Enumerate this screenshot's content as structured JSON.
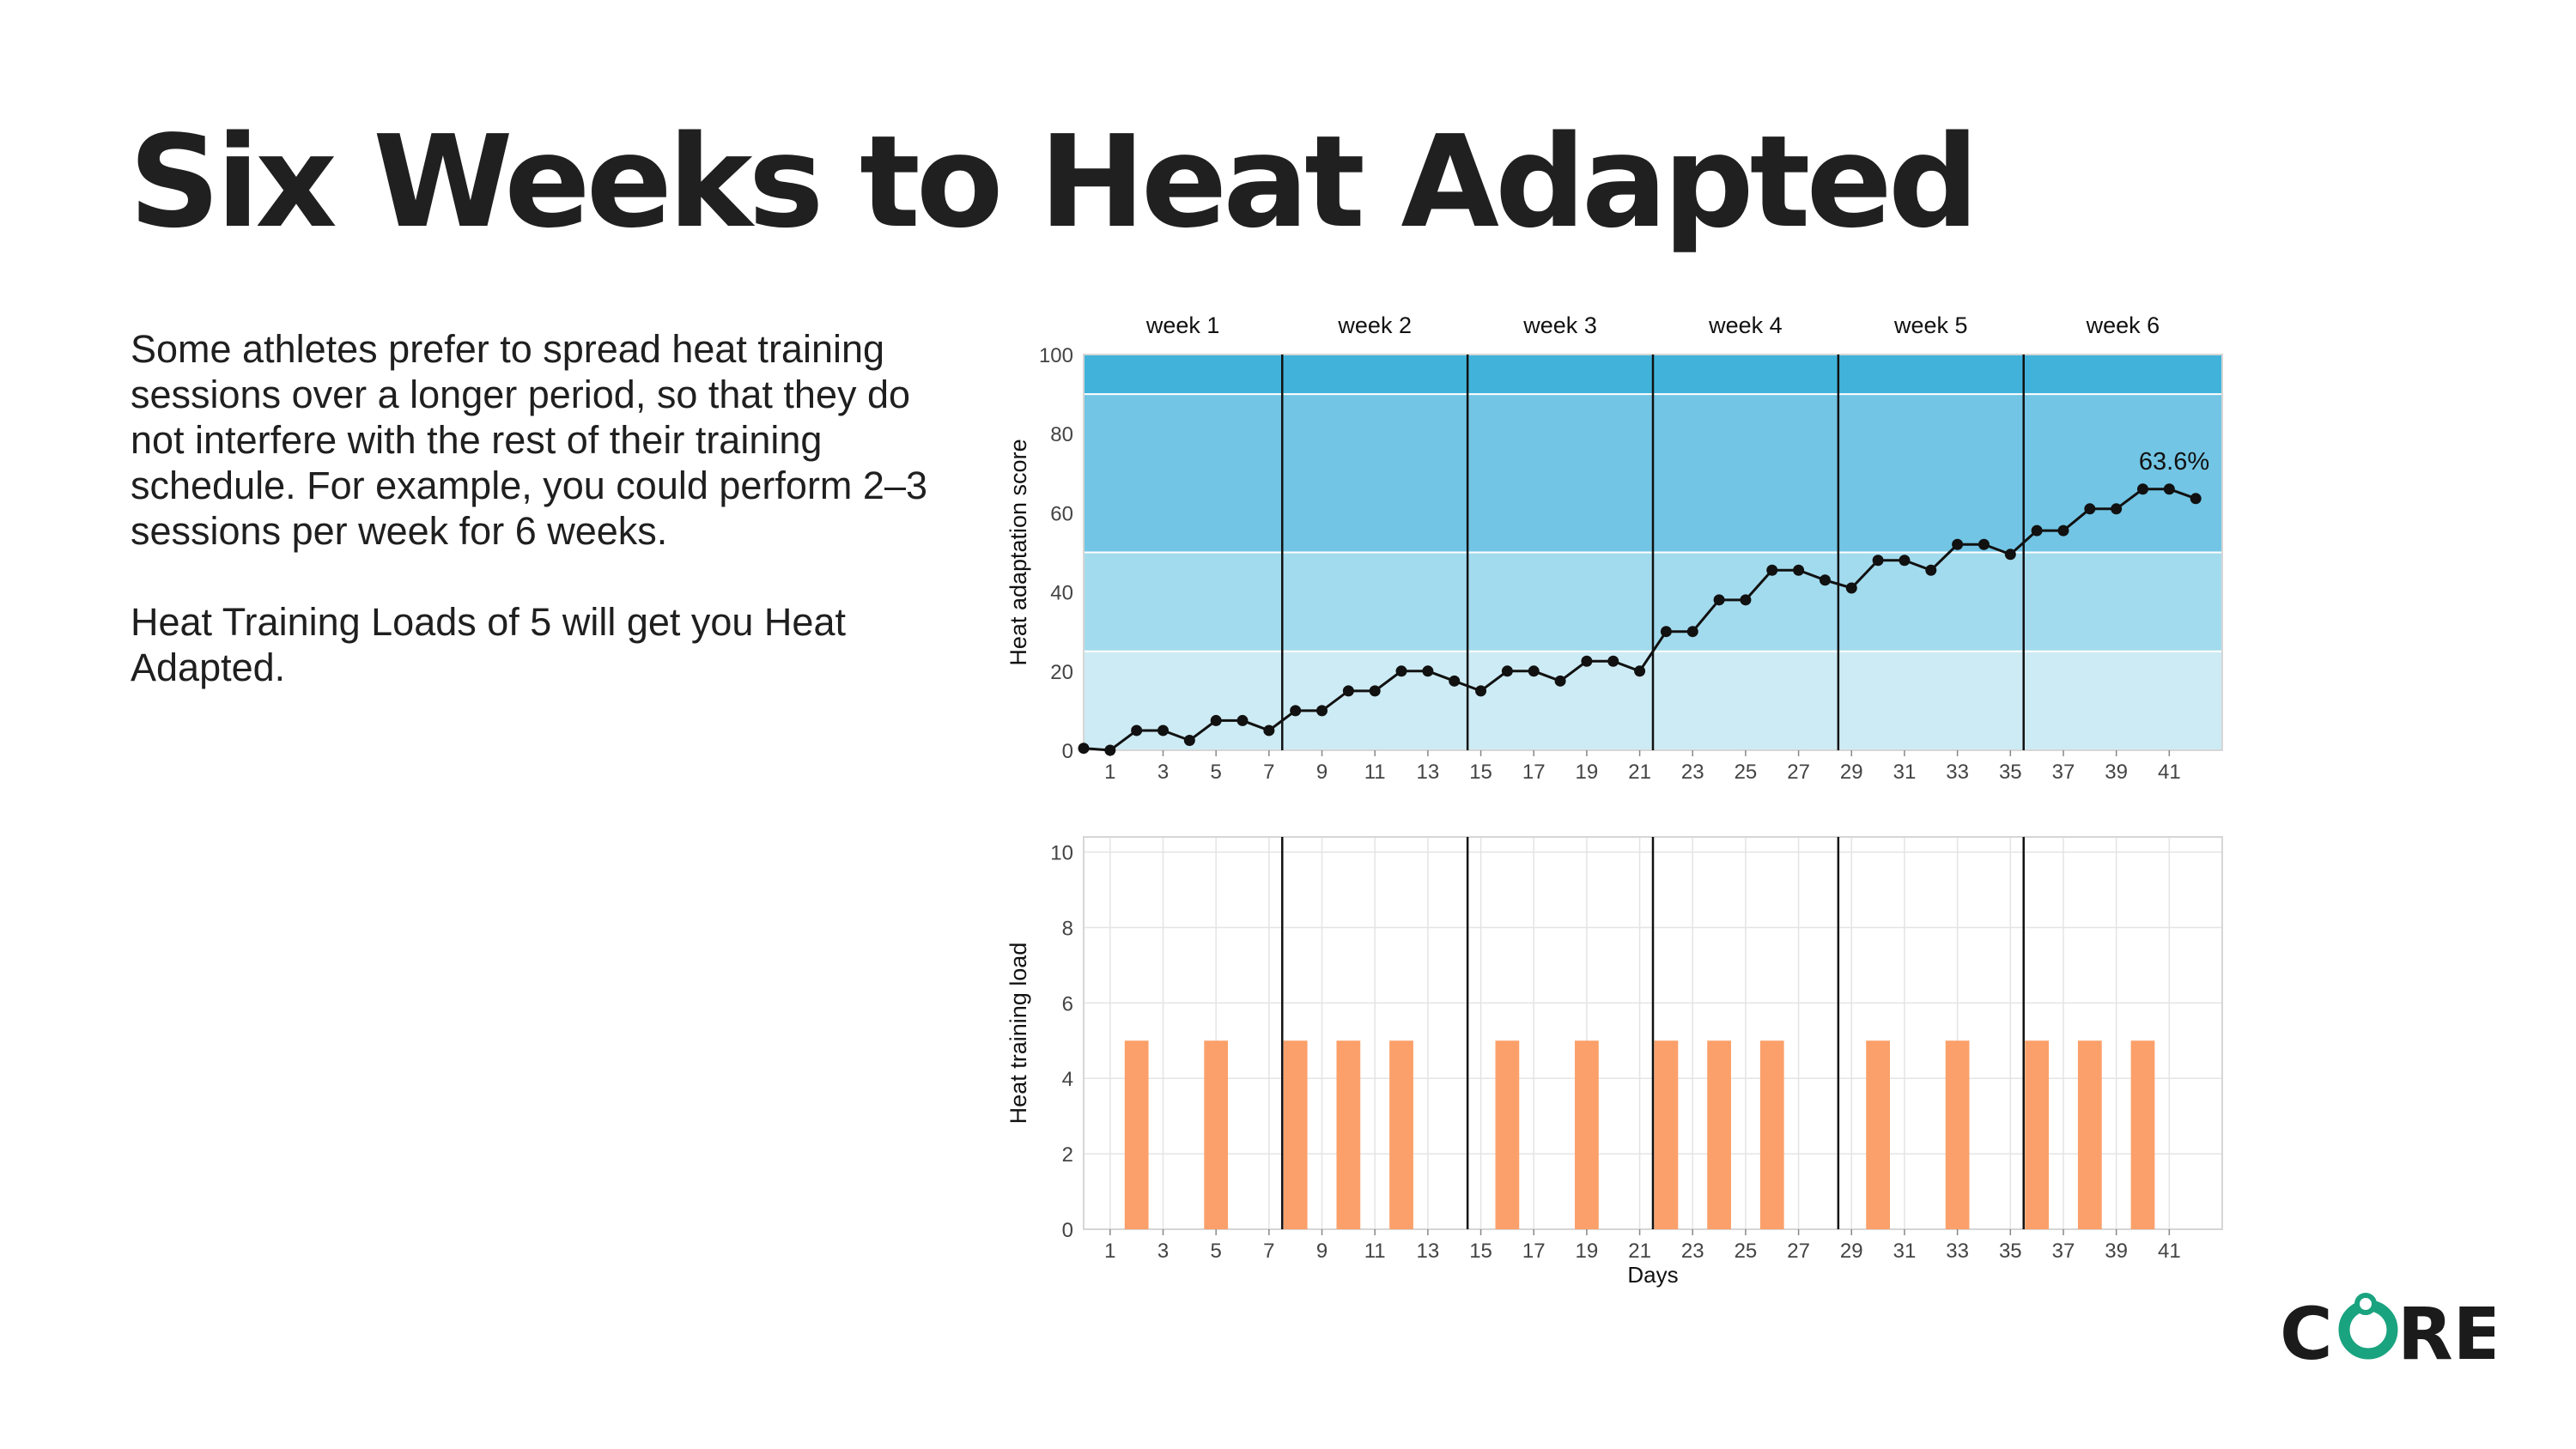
{
  "slide": {
    "title": "Six Weeks to Heat Adapted",
    "paragraphs": [
      "Some athletes prefer to spread heat training sessions over a longer period, so that they do not interfere with the rest of their training schedule. For example, you could perform 2–3 sessions per week for 6 weeks.",
      "Heat Training Loads of 5 will get you Heat Adapted."
    ]
  },
  "logo": {
    "text": "CORE",
    "colors": {
      "dark": "#1b1b1b",
      "accent": "#1aa37f"
    }
  },
  "chart_data": [
    {
      "type": "line",
      "title": "",
      "ylabel": "Heat adaptation score",
      "xlabel": "",
      "ylim": [
        0,
        100
      ],
      "yticks": [
        0,
        20,
        40,
        60,
        80,
        100
      ],
      "xlim": [
        0,
        43
      ],
      "xticks": [
        1,
        3,
        5,
        7,
        9,
        11,
        13,
        15,
        17,
        19,
        21,
        23,
        25,
        27,
        29,
        31,
        33,
        35,
        37,
        39,
        41
      ],
      "week_labels": [
        "week 1",
        "week 2",
        "week 3",
        "week 4",
        "week 5",
        "week 6"
      ],
      "week_boundaries": [
        7.5,
        14.5,
        21.5,
        28.5,
        35.5
      ],
      "bands": [
        {
          "from": 0,
          "to": 25,
          "color": "#cdebf4"
        },
        {
          "from": 25,
          "to": 50,
          "color": "#a3dbee"
        },
        {
          "from": 50,
          "to": 90,
          "color": "#72c5e4"
        },
        {
          "from": 90,
          "to": 100,
          "color": "#41b3db"
        }
      ],
      "annotation": "63.6%",
      "series": [
        {
          "name": "Heat adaptation score",
          "color": "#111111",
          "x": [
            0,
            1,
            2,
            3,
            4,
            5,
            6,
            7,
            8,
            9,
            10,
            11,
            12,
            13,
            14,
            15,
            16,
            17,
            18,
            19,
            20,
            21,
            22,
            23,
            24,
            25,
            26,
            27,
            28,
            29,
            30,
            31,
            32,
            33,
            34,
            35,
            36,
            37,
            38,
            39,
            40,
            41,
            42
          ],
          "values": [
            0.5,
            0,
            5,
            5,
            2.5,
            7.5,
            7.5,
            5,
            10,
            10,
            15,
            15,
            20,
            20,
            17.5,
            15,
            20,
            20,
            17.5,
            22.5,
            22.5,
            20,
            30,
            30,
            38,
            38,
            45.5,
            45.5,
            43,
            41,
            48,
            48,
            45.5,
            52,
            52,
            49.5,
            55.5,
            55.5,
            61,
            61,
            66,
            66,
            63.6
          ]
        }
      ]
    },
    {
      "type": "bar",
      "title": "",
      "ylabel": "Heat training load",
      "xlabel": "Days",
      "ylim": [
        0,
        10.4
      ],
      "yticks": [
        0,
        2,
        4,
        6,
        8,
        10
      ],
      "xlim": [
        0,
        43
      ],
      "xticks": [
        1,
        3,
        5,
        7,
        9,
        11,
        13,
        15,
        17,
        19,
        21,
        23,
        25,
        27,
        29,
        31,
        33,
        35,
        37,
        39,
        41
      ],
      "week_boundaries": [
        7.5,
        14.5,
        21.5,
        28.5,
        35.5
      ],
      "bar_color": "#fba06a",
      "x": [
        2,
        5,
        8,
        10,
        12,
        16,
        19,
        22,
        24,
        26,
        30,
        33,
        36,
        38,
        40
      ],
      "values": [
        5,
        5,
        5,
        5,
        5,
        5,
        5,
        5,
        5,
        5,
        5,
        5,
        5,
        5,
        5
      ]
    }
  ]
}
